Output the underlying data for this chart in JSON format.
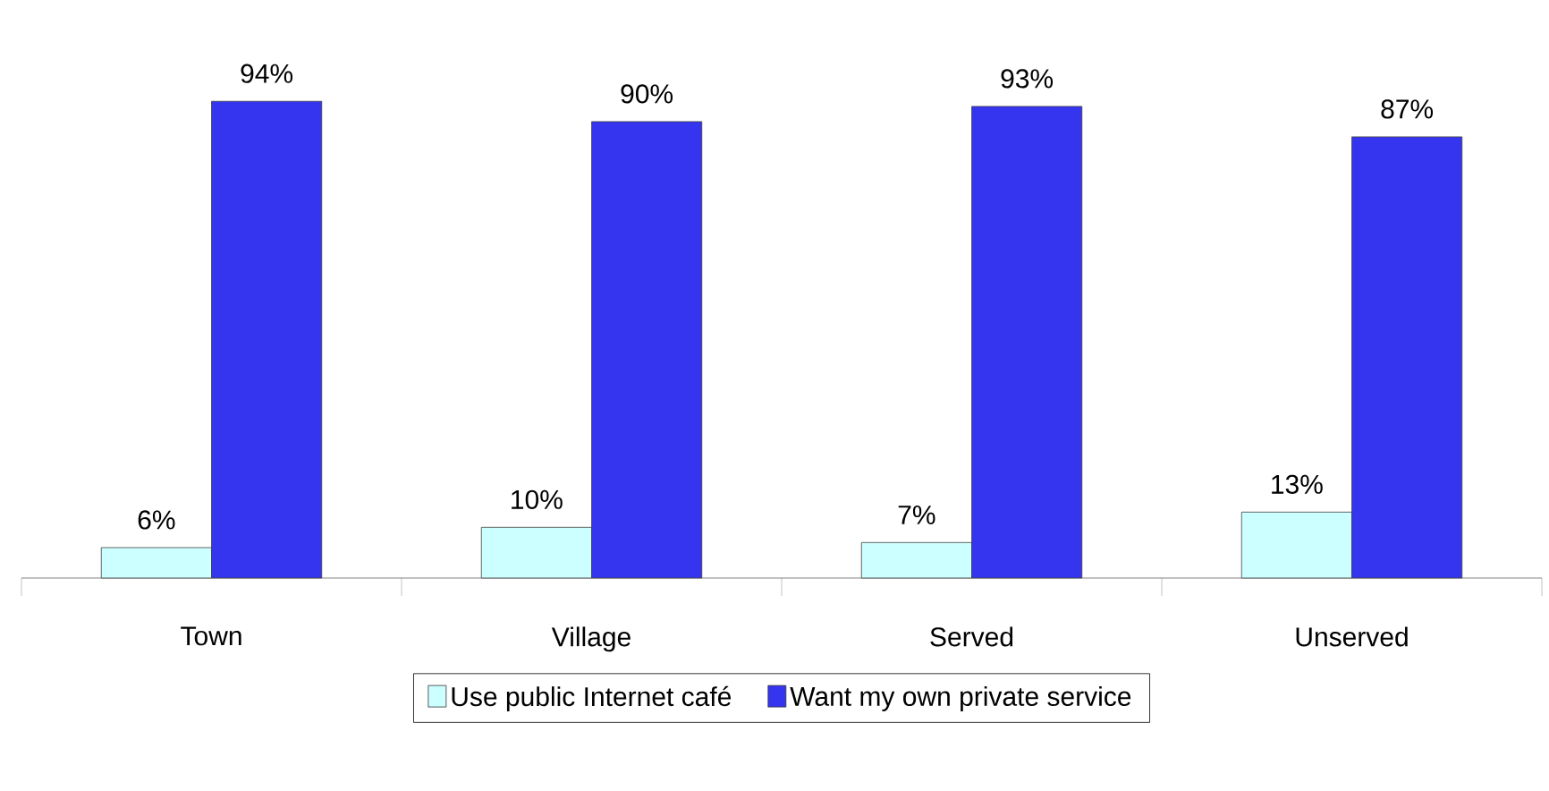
{
  "chart_data": {
    "type": "bar",
    "categories": [
      "Town",
      "Village",
      "Served",
      "Unserved"
    ],
    "series": [
      {
        "name": "Use public Internet café",
        "color": "#ccffff",
        "values": [
          6,
          10,
          7,
          13
        ],
        "value_labels": [
          "6%",
          "10%",
          "7%",
          "13%"
        ]
      },
      {
        "name": "Want my own private service",
        "color": "#3535f0",
        "values": [
          94,
          90,
          93,
          87
        ],
        "value_labels": [
          "94%",
          "90%",
          "93%",
          "87%"
        ]
      }
    ],
    "tick_labels": "x",
    "legend": "bottom"
  }
}
